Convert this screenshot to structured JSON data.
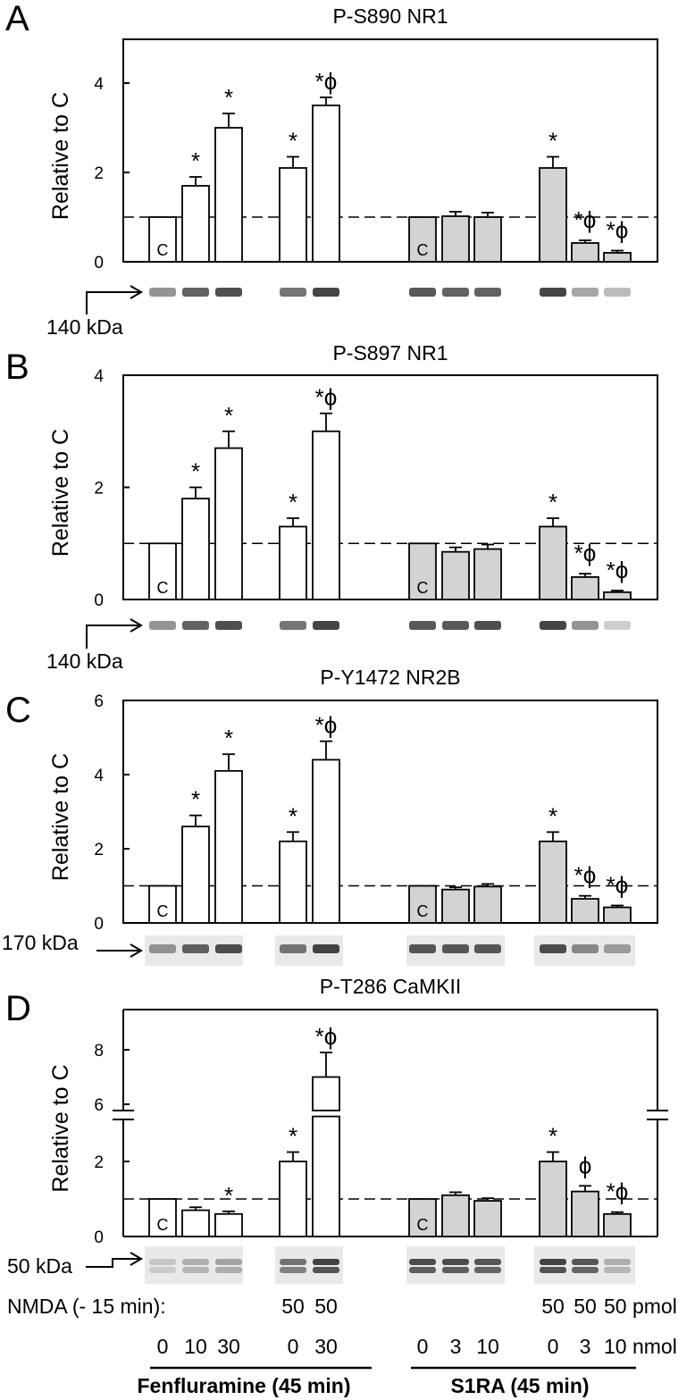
{
  "bottom_labels": {
    "nmda_label": "NMDA (- 15 min):",
    "nmda_fen": [
      "",
      "",
      "",
      "50",
      "50"
    ],
    "nmda_s1ra": [
      "",
      "",
      "",
      "50",
      "50",
      "50 pmol"
    ],
    "dose_fen": [
      "0",
      "10",
      "30",
      "0",
      "30"
    ],
    "dose_s1ra": [
      "0",
      "3",
      "10",
      "0",
      "3",
      "10 nmol"
    ],
    "group_fen": "Fenfluramine (45 min)",
    "group_s1ra": "S1RA (45 min)"
  },
  "colors": {
    "white_bar": "#ffffff",
    "gray_bar": "#d3d3d3"
  },
  "chart_data": [
    {
      "type": "bar",
      "panel": "A",
      "title": "P-S890 NR1",
      "ylabel": "Relative to C",
      "ylim": [
        0,
        5
      ],
      "yticks": [
        "0",
        "2",
        "4"
      ],
      "blot_label": "140 kDa",
      "control_label": "C",
      "reference_line": 1,
      "fenfluramine": {
        "values": [
          1,
          1.7,
          3.0,
          2.1,
          3.5
        ],
        "errors": [
          0,
          0.2,
          0.32,
          0.25,
          0.18
        ],
        "marks": [
          "",
          "*",
          "*",
          "*",
          "*ϕ"
        ]
      },
      "s1ra": {
        "values": [
          1,
          1.02,
          1.0,
          2.1,
          0.42,
          0.2
        ],
        "errors": [
          0,
          0.1,
          0.1,
          0.25,
          0.06,
          0.05
        ],
        "marks": [
          "",
          "",
          "",
          "*",
          "*ϕ",
          "*ϕ"
        ]
      }
    },
    {
      "type": "bar",
      "panel": "B",
      "title": "P-S897 NR1",
      "ylabel": "Relative to C",
      "ylim": [
        0,
        4
      ],
      "yticks": [
        "0",
        "2",
        "4"
      ],
      "blot_label": "140 kDa",
      "control_label": "C",
      "reference_line": 1,
      "fenfluramine": {
        "values": [
          1,
          1.8,
          2.7,
          1.3,
          3.0
        ],
        "errors": [
          0,
          0.2,
          0.3,
          0.15,
          0.32
        ],
        "marks": [
          "",
          "*",
          "*",
          "*",
          "*ϕ"
        ]
      },
      "s1ra": {
        "values": [
          1,
          0.85,
          0.9,
          1.3,
          0.4,
          0.13
        ],
        "errors": [
          0,
          0.08,
          0.08,
          0.15,
          0.06,
          0.03
        ],
        "marks": [
          "",
          "",
          "",
          "*",
          "*ϕ",
          "*ϕ"
        ]
      }
    },
    {
      "type": "bar",
      "panel": "C",
      "title": "P-Y1472 NR2B",
      "ylabel": "Relative to C",
      "ylim": [
        0,
        6
      ],
      "yticks": [
        "0",
        "2",
        "4",
        "6"
      ],
      "blot_label": "170 kDa",
      "control_label": "C",
      "reference_line": 1,
      "fenfluramine": {
        "values": [
          1,
          2.6,
          4.1,
          2.2,
          4.4
        ],
        "errors": [
          0,
          0.3,
          0.45,
          0.25,
          0.5
        ],
        "marks": [
          "",
          "*",
          "*",
          "*",
          "*ϕ"
        ]
      },
      "s1ra": {
        "values": [
          1,
          0.9,
          0.98,
          2.2,
          0.65,
          0.42
        ],
        "errors": [
          0,
          0.06,
          0.07,
          0.25,
          0.08,
          0.05
        ],
        "marks": [
          "",
          "",
          "",
          "*",
          "*ϕ",
          "*ϕ"
        ]
      }
    },
    {
      "type": "bar",
      "panel": "D",
      "title": "P-T286 CaMKII",
      "ylabel": "Relative to C",
      "yticks_lower": [
        "0",
        "2"
      ],
      "yticks_upper": [
        "6",
        "8"
      ],
      "axis_break": [
        3.2,
        5.8
      ],
      "blot_label": "50 kDa",
      "control_label": "C",
      "reference_line": 1,
      "fenfluramine": {
        "values": [
          1,
          0.7,
          0.6,
          2.0,
          7.0
        ],
        "errors": [
          0,
          0.08,
          0.07,
          0.25,
          0.9
        ],
        "marks": [
          "",
          "",
          "*",
          "*",
          "*ϕ"
        ]
      },
      "s1ra": {
        "values": [
          1,
          1.1,
          0.95,
          2.0,
          1.2,
          0.6
        ],
        "errors": [
          0,
          0.08,
          0.07,
          0.25,
          0.15,
          0.05
        ],
        "marks": [
          "",
          "",
          "",
          "*",
          "ϕ",
          "*ϕ"
        ]
      }
    }
  ]
}
